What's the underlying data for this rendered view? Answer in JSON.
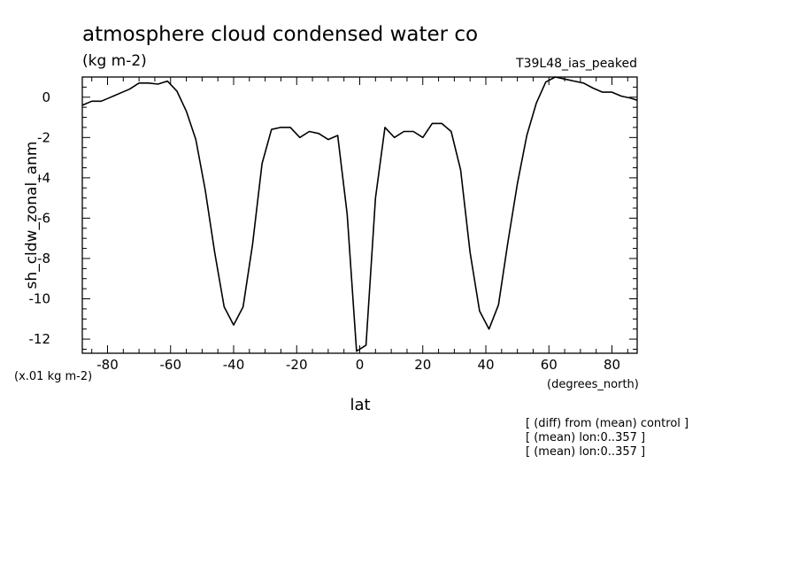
{
  "chart_data": {
    "type": "line",
    "title": "atmosphere cloud condensed water co",
    "units_label": "(kg m-2)",
    "experiment": "T39L48_ias_peaked",
    "ylabel": "sh_cldw_zonal_anm",
    "yscale_note": "(x.01 kg m-2)",
    "xlabel": "lat",
    "xunits_note": "(degrees_north)",
    "notes": [
      "[ (diff) from (mean) control ]",
      "[ (mean) lon:0..357 ]",
      "[ (mean) lon:0..357 ]"
    ],
    "xlim": [
      -88,
      88
    ],
    "ylim": [
      -12.7,
      1.0
    ],
    "xticks": [
      -80,
      -60,
      -40,
      -20,
      0,
      20,
      40,
      60,
      80
    ],
    "xtick_labels": [
      "-80",
      "-60",
      "-40",
      "-20",
      "0",
      "20",
      "40",
      "60",
      "80"
    ],
    "yticks": [
      0,
      -2,
      -4,
      -6,
      -8,
      -10,
      -12
    ],
    "ytick_labels": [
      "0",
      "-2",
      "-4",
      "-6",
      "-8",
      "-10",
      "-12"
    ],
    "grid": false,
    "series": [
      {
        "x": [
          -88,
          -85,
          -82,
          -79,
          -76,
          -73,
          -70,
          -67,
          -64,
          -61,
          -58,
          -55,
          -52,
          -49,
          -46,
          -43,
          -40,
          -37,
          -34,
          -31,
          -28,
          -25,
          -22,
          -19,
          -16,
          -13,
          -10,
          -7,
          -4,
          -1,
          2,
          5,
          8,
          11,
          14,
          17,
          20,
          23,
          26,
          29,
          32,
          35,
          38,
          41,
          44,
          47,
          50,
          53,
          56,
          59,
          62,
          65,
          68,
          71,
          74,
          77,
          80,
          83,
          86,
          88
        ],
        "y": [
          -0.4,
          -0.2,
          -0.2,
          0.0,
          0.2,
          0.4,
          0.7,
          0.7,
          0.65,
          0.8,
          0.3,
          -0.7,
          -2.1,
          -4.6,
          -7.7,
          -10.4,
          -11.3,
          -10.4,
          -7.3,
          -3.3,
          -1.6,
          -1.5,
          -1.5,
          -2.0,
          -1.7,
          -1.8,
          -2.1,
          -1.9,
          -5.8,
          -12.6,
          -12.3,
          -5.0,
          -1.5,
          -2.0,
          -1.7,
          -1.7,
          -2.0,
          -1.3,
          -1.3,
          -1.7,
          -3.6,
          -7.7,
          -10.6,
          -11.5,
          -10.3,
          -7.2,
          -4.3,
          -1.9,
          -0.3,
          0.75,
          1.0,
          0.9,
          0.8,
          0.7,
          0.45,
          0.25,
          0.25,
          0.05,
          -0.05,
          -0.15
        ]
      }
    ]
  }
}
